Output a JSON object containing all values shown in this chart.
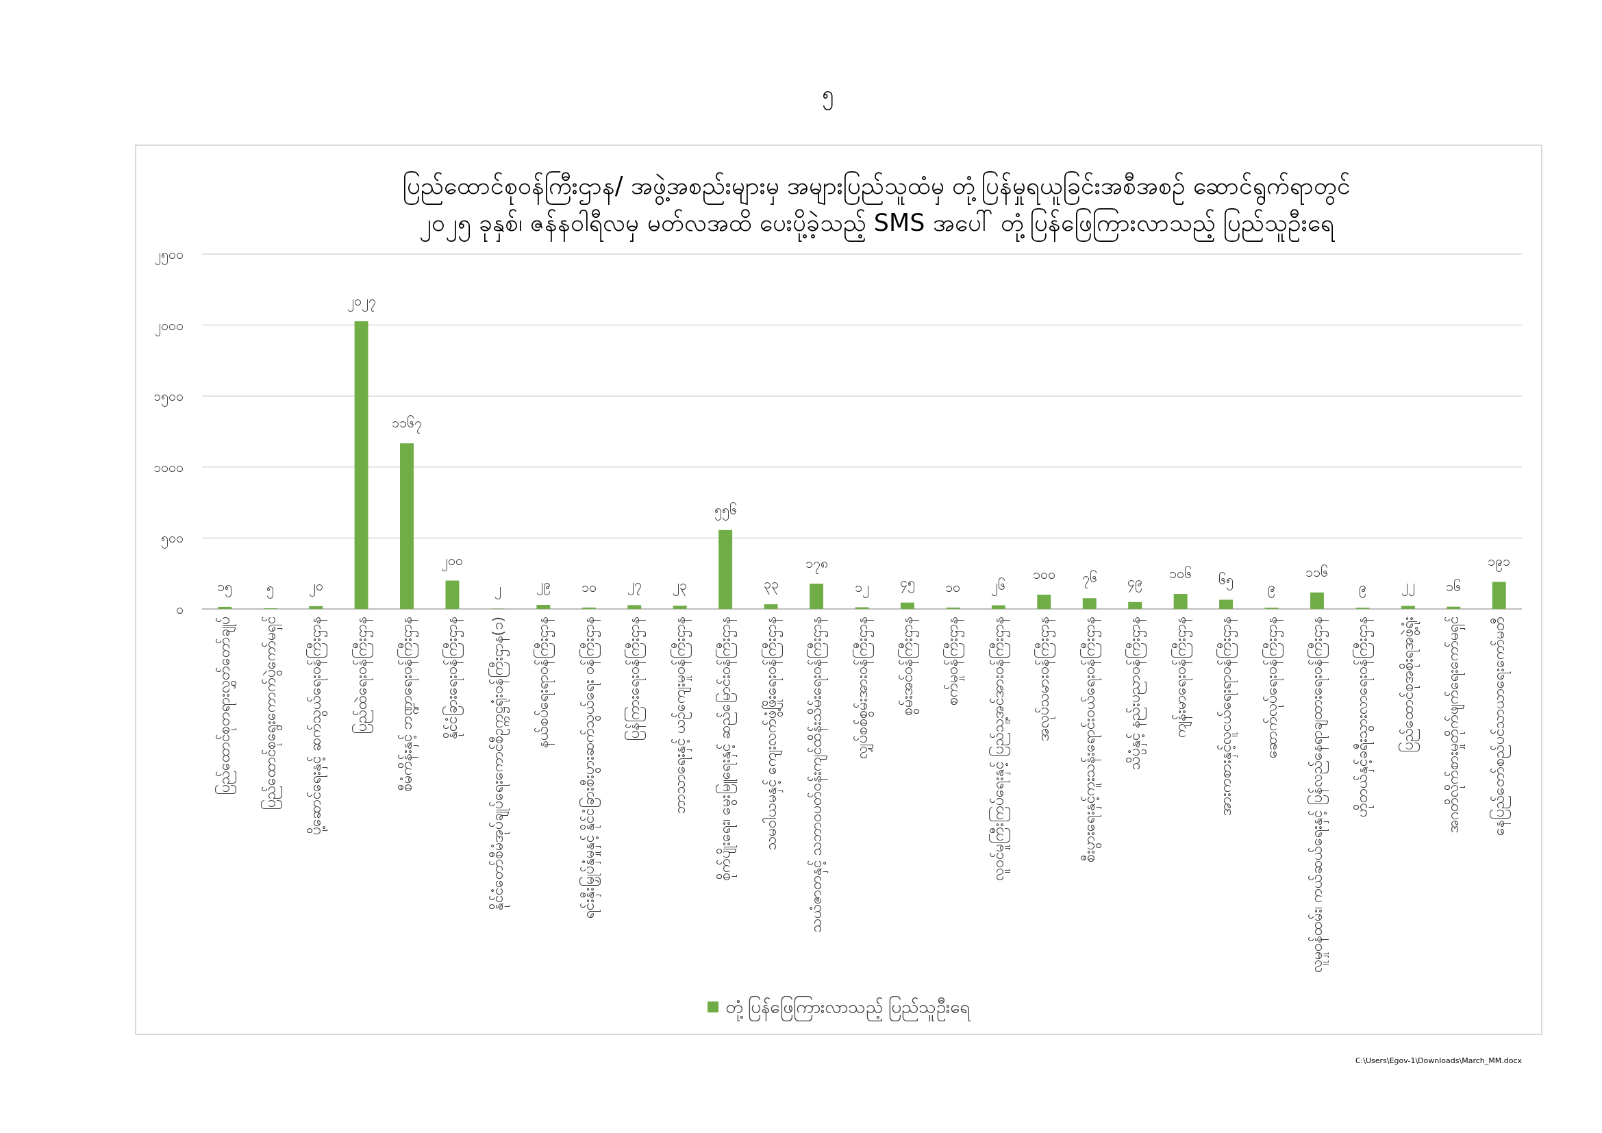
{
  "chart_data": {
    "type": "bar",
    "title": "ပြည်ထောင်စုဝန်ကြီးဌာန/ အဖွဲ့အစည်းများမှ အများပြည်သူထံမှ တုံ့ပြန်မှုရယူခြင်းအစီအစဉ် ဆောင်ရွက်ရာတွင် ၂၀၂၅ ခုနှစ်၊ ဇန်နဝါရီလမှ မတ်လအထိ ပေးပို့ခဲ့သည့် SMS အပေါ် တုံ့ပြန်ဖြေကြားလာသည့် ပြည်သူဦးရေ",
    "categories": [
      "ပြည်ထောင်စုတရားလွှတ်တော်ချုပ်",
      "ပြည်ထောင်စုရွေးကောက်ပွဲကော်မရှင်",
      "ပို့ဆောင်ရေးနှင့် ဆက်သွယ်ရေးဝန်ကြီးဌာန",
      "ပြည်ထဲရေးဝန်ကြီးဌာန",
      "စီမံကိန်းနှင့် ဘဏ္ဍာရေးဝန်ကြီးဌာန",
      "နိုင်ငံခြားရေးဝန်ကြီးဌာန",
      "နိုင်ငံတော်စီမံအုပ်ချုပ်ရေးကောင်စီဥက္ကဋ္ဌရုံးဝန်ကြီးဌာန(၁)",
      "နယ်စပ်ရေးရာဝန်ကြီးဌာန",
      "ရင်းနှီးမြှုပ်နှံမှုနှင့် နိုင်ငံခြားစီးပွားဆက်သွယ်ရေး ဝန်ကြီးဌာန",
      "ပြန်ကြားရေးဝန်ကြီးဌာန",
      "ဘာသာရေးနှင့် ယဉ်ကျေးမှုဝန်ကြီးဌာန",
      "စိုက်ပျိုးရေး၊ မွေးမြူရေးနှင့် ဆည်မြောင်းဝန်ကြီးဌာန",
      "သမဝါယမနှင့် ကျေးလက်ဖွံ့ဖြိုးရေးဝန်ကြီးဌာန",
      "သယံဇာတနှင့် သဘာဝပတ်ဝန်းကျင်ထိန်းသိမ်းရေးဝန်ကြီးဌာန",
      "လျှပ်စစ်စွမ်းအားဝန်ကြီးဌာန",
      "စွမ်းအင်ဝန်ကြီးဌာန",
      "စက်မှုဝန်ကြီးဌာန",
      "လူဝင်မှုကြီးကြပ်ရေးနှင့် ပြည်သူ့အင်အားဝန်ကြီးဌာန",
      "အလုပ်သမားဝန်ကြီးဌာန",
      "စီးပွားရေးနှင့်ကူးသန်းရောင်းဝယ်ရေးဝန်ကြီးဌာန",
      "သိပ္ပံနှင့် နည်းပညာဝန်ကြီးဌာန",
      "ကျန်းမာရေးဝန်ကြီးဌာန",
      "အားကစားနှင့်လူငယ်ရေးရာဝန်ကြီးဌာန",
      "ဆောက်လုပ်ရေးဝန်ကြီးဌာန",
      "လူမှုဝန်ထမ်း၊ ကယ်ဆယ်ရေးနှင့် ပြန်လည်နေရာချထားရေးဝန်ကြီးဌာန",
      "ဟိုတယ်နှင့်ခရီးသွားလာရေးဝန်ကြီးဌာန",
      "ပြည်ထောင်စုအစိုးရအဖွဲ့ရုံး",
      "အဂတိလိုက်စားမှုတိုက်ဖျက်ရေးကော်မရှင်",
      "နေပြည်တော်စည်ပင်သာယာရေးကော်မတီ"
    ],
    "series": [
      {
        "name": "တုံ့ပြန်ဖြေကြားလာသည့် ပြည်သူဦးရေ",
        "color": "#70ad47",
        "values": [
          15,
          5,
          20,
          2027,
          1167,
          200,
          2,
          29,
          10,
          27,
          23,
          556,
          33,
          178,
          12,
          45,
          10,
          26,
          100,
          76,
          49,
          106,
          65,
          9,
          116,
          9,
          22,
          16,
          191
        ],
        "value_labels": [
          "၁၅",
          "၅",
          "၂၀",
          "၂၀၂၇",
          "၁၁၆၇",
          "၂၀၀",
          "၂",
          "၂၉",
          "၁၀",
          "၂၇",
          "၂၃",
          "၅၅၆",
          "၃၃",
          "၁၇၈",
          "၁၂",
          "၄၅",
          "၁၀",
          "၂၆",
          "၁၀၀",
          "၇၆",
          "၄၉",
          "၁၀၆",
          "၆၅",
          "၉",
          "၁၁၆",
          "၉",
          "၂၂",
          "၁၆",
          "၁၉၁"
        ]
      }
    ],
    "ylim": [
      0,
      2500
    ],
    "yticks": [
      {
        "value": 0,
        "label": "၀"
      },
      {
        "value": 500,
        "label": "၅၀၀"
      },
      {
        "value": 1000,
        "label": "၁၀၀၀"
      },
      {
        "value": 1500,
        "label": "၁၅၀၀"
      },
      {
        "value": 2000,
        "label": "၂၀၀၀"
      },
      {
        "value": 2500,
        "label": "၂၅၀၀"
      }
    ],
    "grid": "y",
    "legend": "bottom",
    "annotations": [
      "၅",
      "C:\\Users\\Egov-1\\Downloads\\March_MM.docx"
    ]
  }
}
